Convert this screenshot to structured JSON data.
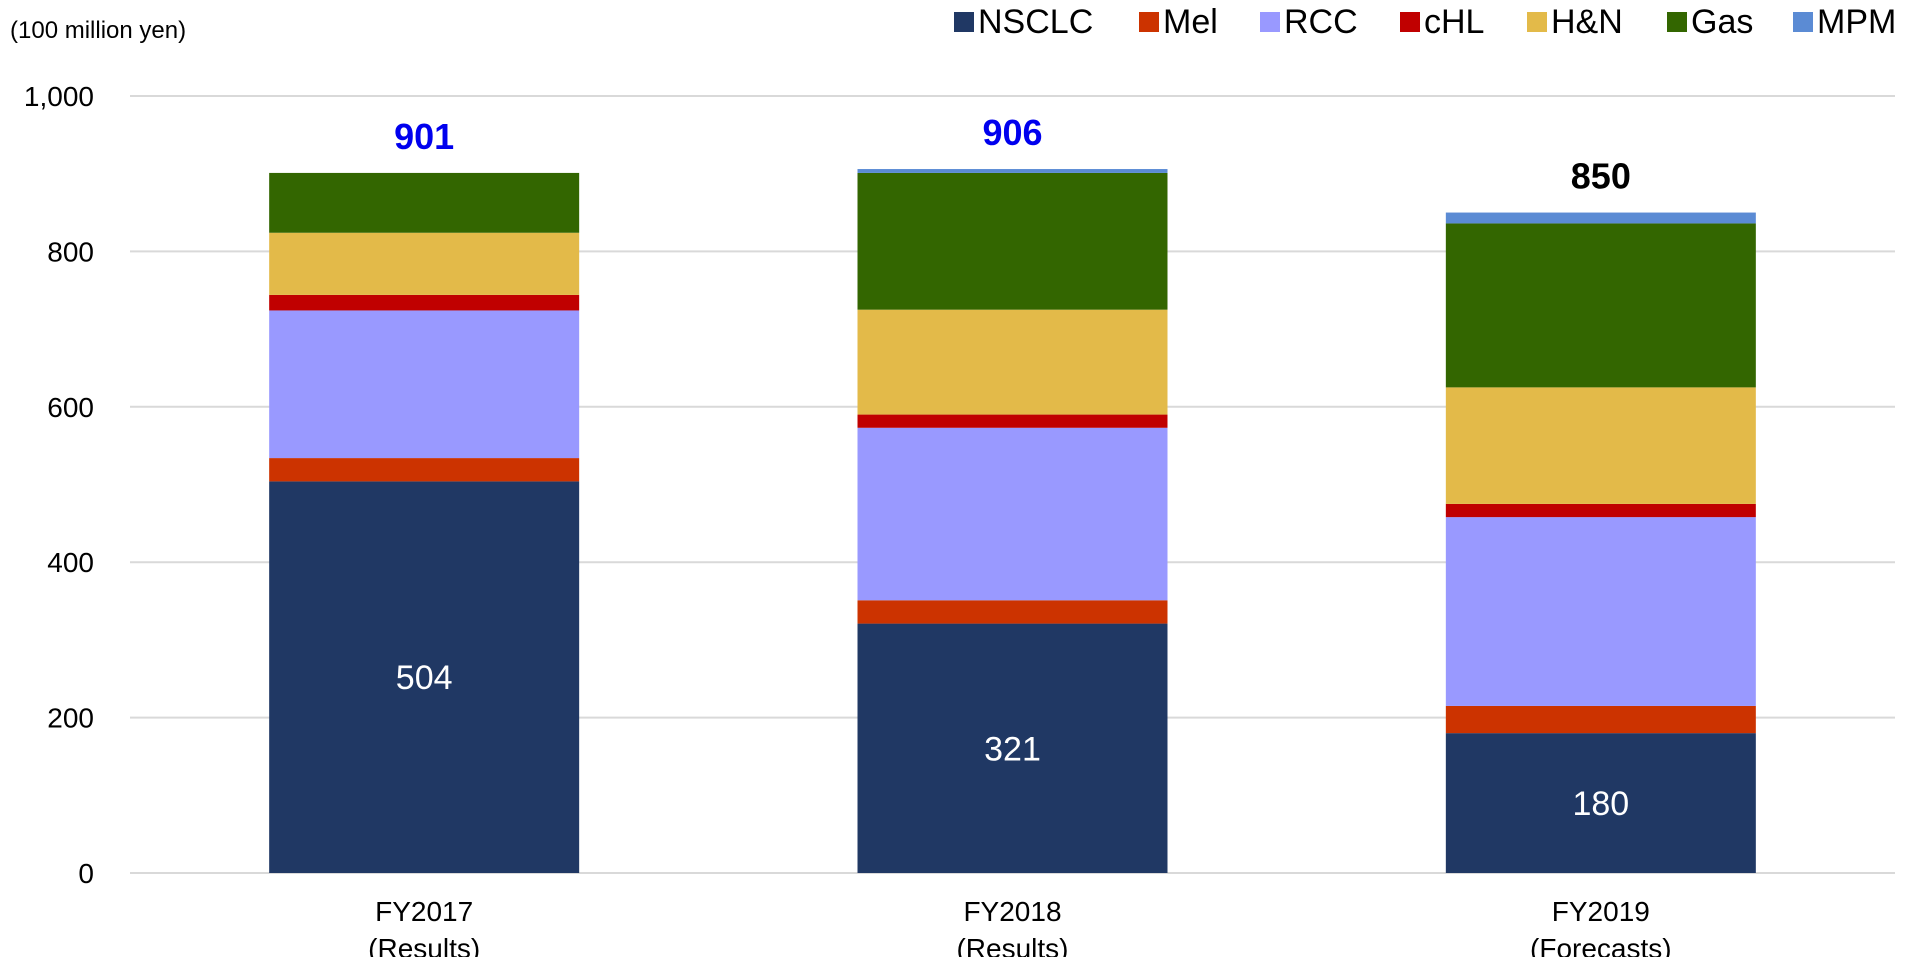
{
  "chart_data": {
    "type": "bar",
    "stacked": true,
    "unit_label": "(100 million yen)",
    "categories": [
      [
        "FY2017",
        "(Results)"
      ],
      [
        "FY2018",
        "(Results)"
      ],
      [
        "FY2019",
        "(Forecasts)"
      ]
    ],
    "ylim": [
      0,
      1000
    ],
    "yticks": [
      0,
      200,
      400,
      600,
      800,
      1000
    ],
    "ytick_labels": [
      "0",
      "200",
      "400",
      "600",
      "800",
      "1,000"
    ],
    "grid": true,
    "legend_position": "top-right",
    "series": [
      {
        "name": "NSCLC",
        "color": "#203864",
        "values": [
          504,
          321,
          180
        ]
      },
      {
        "name": "Mel",
        "color": "#CC3300",
        "values": [
          30,
          30,
          35
        ]
      },
      {
        "name": "RCC",
        "color": "#9999FF",
        "values": [
          190,
          222,
          243
        ]
      },
      {
        "name": "cHL",
        "color": "#C00000",
        "values": [
          20,
          17,
          17
        ]
      },
      {
        "name": "H&N",
        "color": "#E3BA49",
        "values": [
          80,
          135,
          150
        ]
      },
      {
        "name": "Gas",
        "color": "#336600",
        "values": [
          77,
          176,
          211
        ]
      },
      {
        "name": "MPM",
        "color": "#5B8BD4",
        "values": [
          0,
          5,
          14
        ]
      }
    ],
    "segment_labels": [
      {
        "series": "NSCLC",
        "values": [
          "504",
          "321",
          "180"
        ]
      }
    ],
    "totals": [
      "901",
      "906",
      "850"
    ],
    "total_colors": [
      "#0000EE",
      "#0000EE",
      "#000000"
    ]
  }
}
